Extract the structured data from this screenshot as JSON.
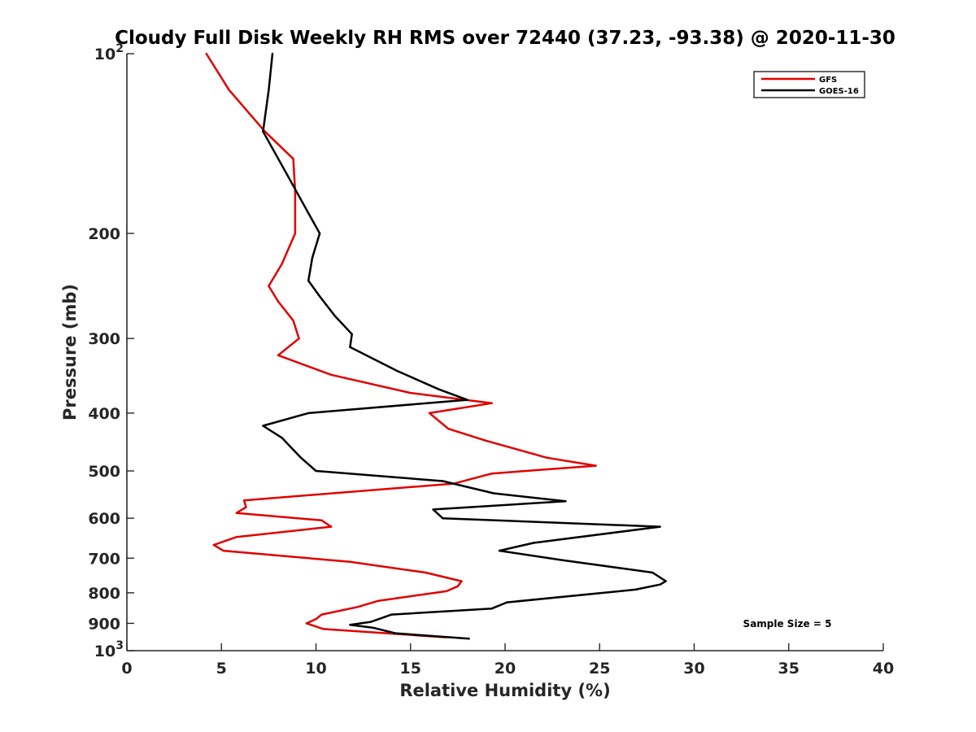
{
  "chart_data": {
    "type": "line",
    "title": "Cloudy Full Disk Weekly RH RMS over 72440 (37.23, -93.38) @ 2020-11-30",
    "xlabel": "Relative Humidity (%)",
    "ylabel": "Pressure (mb)",
    "xlim": [
      0,
      40
    ],
    "ylim": [
      100,
      1000
    ],
    "y_scale": "log",
    "y_reversed": true,
    "grid": false,
    "legend_position": "top-right",
    "x_ticks": [
      "0",
      "5",
      "10",
      "15",
      "20",
      "25",
      "30",
      "35",
      "40"
    ],
    "y_ticks": [
      {
        "value": 100,
        "base": "10",
        "exp": "2"
      },
      {
        "value": 200,
        "label": "200"
      },
      {
        "value": 300,
        "label": "300"
      },
      {
        "value": 400,
        "label": "400"
      },
      {
        "value": 500,
        "label": "500"
      },
      {
        "value": 600,
        "label": "600"
      },
      {
        "value": 700,
        "label": "700"
      },
      {
        "value": 800,
        "label": "800"
      },
      {
        "value": 900,
        "label": "900"
      },
      {
        "value": 1000,
        "base": "10",
        "exp": "3"
      }
    ],
    "series": [
      {
        "name": "GFS",
        "color": "#e00000",
        "points": [
          [
            4.2,
            100
          ],
          [
            5.4,
            115
          ],
          [
            7.3,
            135
          ],
          [
            8.8,
            150
          ],
          [
            8.9,
            170
          ],
          [
            8.9,
            200
          ],
          [
            8.2,
            225
          ],
          [
            7.5,
            245
          ],
          [
            8.0,
            260
          ],
          [
            8.8,
            280
          ],
          [
            9.1,
            300
          ],
          [
            8.0,
            320
          ],
          [
            10.8,
            345
          ],
          [
            15.0,
            370
          ],
          [
            19.3,
            385
          ],
          [
            16.0,
            400
          ],
          [
            17.0,
            425
          ],
          [
            19.0,
            445
          ],
          [
            22.2,
            475
          ],
          [
            24.8,
            490
          ],
          [
            19.3,
            505
          ],
          [
            17.3,
            525
          ],
          [
            6.2,
            560
          ],
          [
            6.3,
            575
          ],
          [
            5.8,
            588
          ],
          [
            10.3,
            605
          ],
          [
            10.8,
            620
          ],
          [
            5.8,
            645
          ],
          [
            4.6,
            665
          ],
          [
            5.1,
            680
          ],
          [
            11.8,
            710
          ],
          [
            15.8,
            740
          ],
          [
            17.7,
            765
          ],
          [
            17.5,
            780
          ],
          [
            16.9,
            795
          ],
          [
            13.3,
            825
          ],
          [
            12.2,
            845
          ],
          [
            10.3,
            870
          ],
          [
            10.0,
            885
          ],
          [
            9.5,
            900
          ],
          [
            10.4,
            920
          ],
          [
            16.9,
            950
          ]
        ]
      },
      {
        "name": "GOES-16",
        "color": "#000000",
        "points": [
          [
            7.7,
            100
          ],
          [
            7.5,
            115
          ],
          [
            7.2,
            135
          ],
          [
            8.5,
            160
          ],
          [
            9.6,
            185
          ],
          [
            10.2,
            200
          ],
          [
            9.8,
            220
          ],
          [
            9.6,
            240
          ],
          [
            10.2,
            255
          ],
          [
            11.0,
            275
          ],
          [
            11.9,
            295
          ],
          [
            11.8,
            310
          ],
          [
            14.3,
            340
          ],
          [
            16.5,
            365
          ],
          [
            18.0,
            380
          ],
          [
            9.6,
            400
          ],
          [
            7.2,
            420
          ],
          [
            8.2,
            440
          ],
          [
            9.2,
            475
          ],
          [
            10.0,
            500
          ],
          [
            16.7,
            520
          ],
          [
            19.4,
            545
          ],
          [
            23.2,
            562
          ],
          [
            16.2,
            580
          ],
          [
            16.7,
            600
          ],
          [
            28.2,
            620
          ],
          [
            21.5,
            660
          ],
          [
            19.7,
            680
          ],
          [
            23.0,
            705
          ],
          [
            27.8,
            740
          ],
          [
            28.5,
            765
          ],
          [
            28.2,
            775
          ],
          [
            26.9,
            790
          ],
          [
            20.1,
            830
          ],
          [
            19.3,
            850
          ],
          [
            14.0,
            870
          ],
          [
            12.9,
            895
          ],
          [
            11.8,
            905
          ],
          [
            13.0,
            915
          ],
          [
            14.2,
            935
          ],
          [
            18.1,
            955
          ]
        ]
      }
    ],
    "annotations": [
      {
        "text": "Sample Size = 5"
      }
    ]
  }
}
